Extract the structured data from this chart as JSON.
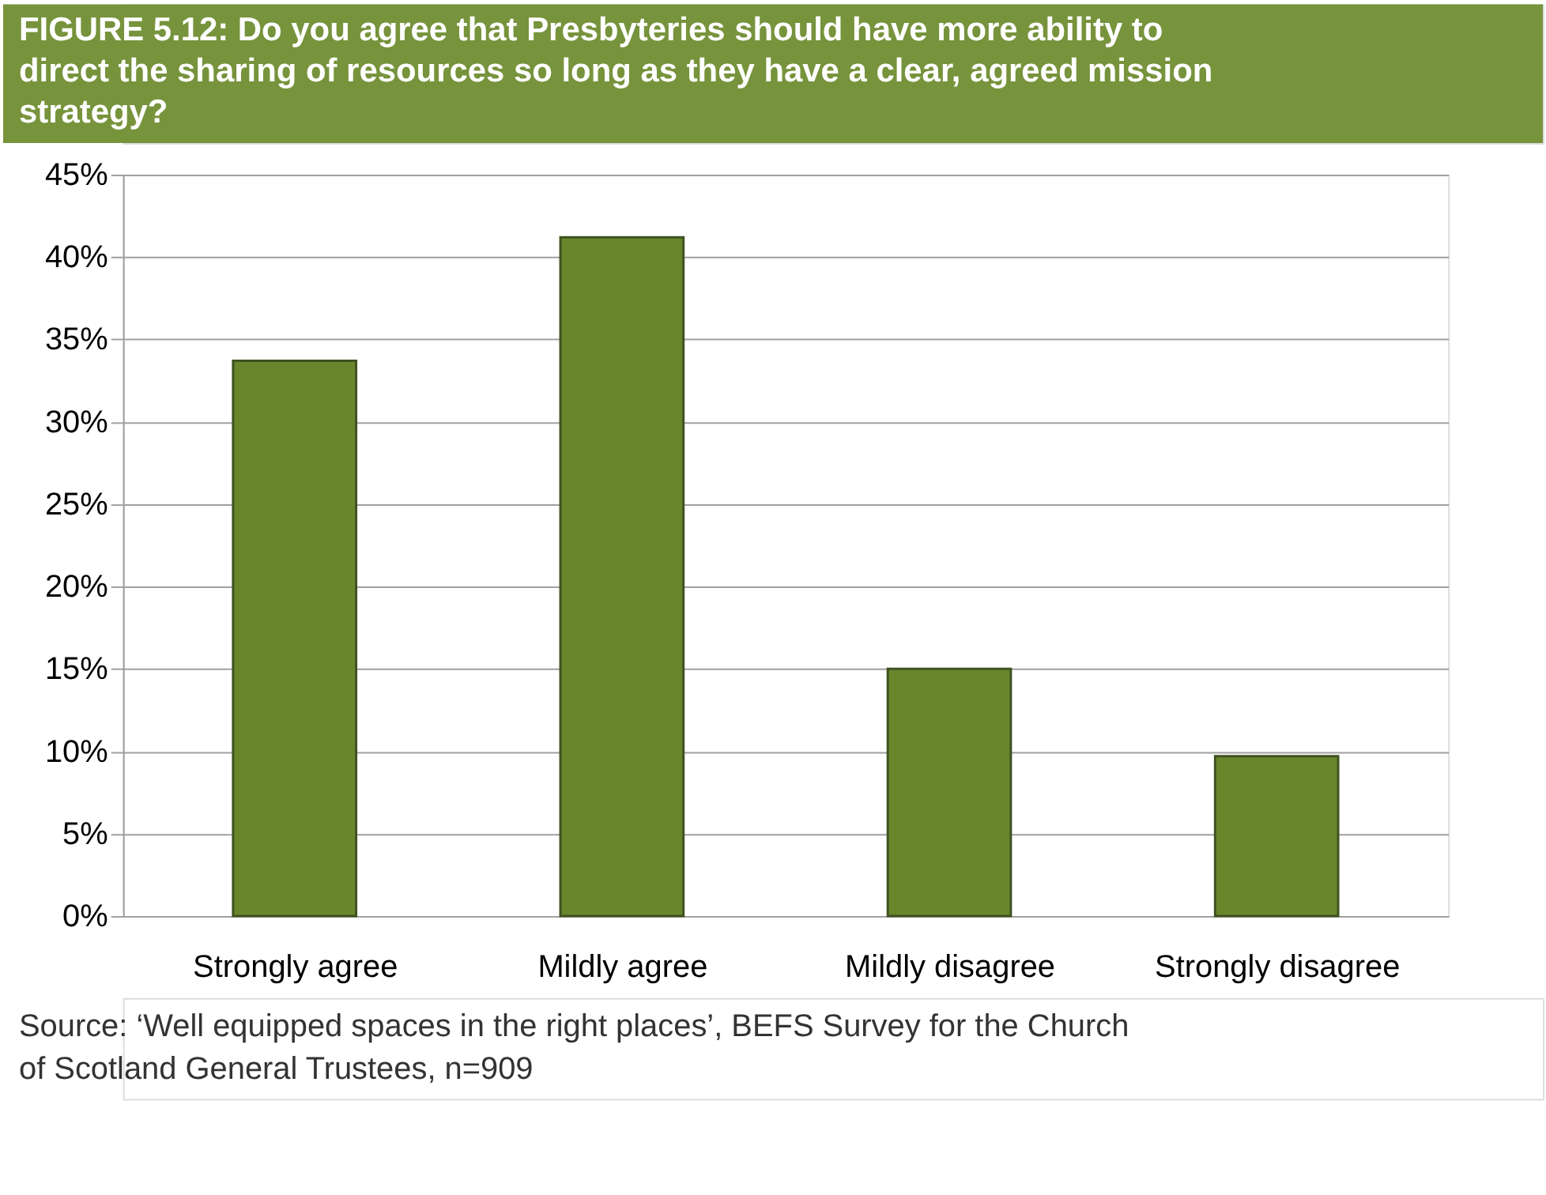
{
  "chart_data": {
    "type": "bar",
    "title": "FIGURE 5.12: Do you agree that Presbyteries should have more ability to direct the sharing of resources so long as they have a clear, agreed mission strategy?",
    "categories": [
      "Strongly agree",
      "Mildly agree",
      "Mildly disagree",
      "Strongly disagree"
    ],
    "values": [
      33.7,
      41.2,
      15.0,
      9.7
    ],
    "color": "#6a862c",
    "ylim": [
      0,
      45
    ],
    "yticks": [
      {
        "value": 0,
        "label": "0%"
      },
      {
        "value": 5,
        "label": "5%"
      },
      {
        "value": 10,
        "label": "10%"
      },
      {
        "value": 15,
        "label": "15%"
      },
      {
        "value": 20,
        "label": "20%"
      },
      {
        "value": 25,
        "label": "25%"
      },
      {
        "value": 30,
        "label": "30%"
      },
      {
        "value": 35,
        "label": "35%"
      },
      {
        "value": 40,
        "label": "40%"
      },
      {
        "value": 45,
        "label": "45%"
      }
    ],
    "grid": "y",
    "annotations": [
      "Source: ‘Well equipped spaces in the right places’, BEFS Survey for the Church of Scotland General Trustees, n=909"
    ]
  }
}
